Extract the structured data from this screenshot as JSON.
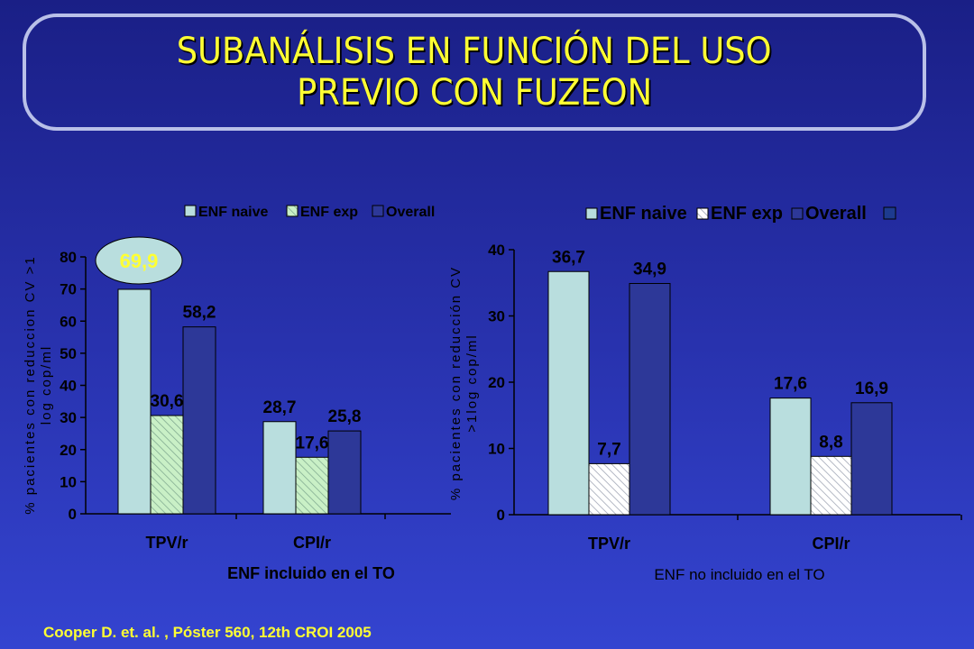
{
  "title": {
    "line1": "SUBANÁLISIS EN FUNCIÓN DEL USO",
    "line2": "PREVIO CON FUZEON"
  },
  "colors": {
    "naive": "#b9dede",
    "exp": "#c9f0c6",
    "exp_hatch": "#7fa88f",
    "overall": "#2d3898",
    "ellipse": "#b9dede",
    "ellipse_text": "#ffff33",
    "title": "#ffff33"
  },
  "chart_data": [
    {
      "type": "bar",
      "categories": [
        "TPV/r",
        "CPI/r"
      ],
      "series": [
        {
          "name": "ENF naive",
          "values": [
            69.9,
            28.7
          ]
        },
        {
          "name": "ENF exp",
          "values": [
            30.6,
            17.6
          ]
        },
        {
          "name": "Overall",
          "values": [
            58.2,
            25.8
          ]
        }
      ],
      "data_labels": [
        [
          "69,9",
          "28,7"
        ],
        [
          "30,6",
          "17,6"
        ],
        [
          "58,2",
          "25,8"
        ]
      ],
      "callout": "69,9",
      "yticks": [
        "0",
        "10",
        "20",
        "30",
        "40",
        "50",
        "60",
        "70",
        "80"
      ],
      "ylim": [
        0,
        80
      ],
      "ylabel_line1": "% pacientes con reduccion CV >1",
      "ylabel_line2": "log cop/ml",
      "xlabel": "ENF incluido en el TO",
      "legend_position": "top"
    },
    {
      "type": "bar",
      "categories": [
        "TPV/r",
        "CPI/r"
      ],
      "series": [
        {
          "name": "ENF naive",
          "values": [
            36.7,
            17.6
          ]
        },
        {
          "name": "ENF exp",
          "values": [
            7.7,
            8.8
          ]
        },
        {
          "name": "Overall",
          "values": [
            34.9,
            16.9
          ]
        }
      ],
      "data_labels": [
        [
          "36,7",
          "17,6"
        ],
        [
          "7,7",
          "8,8"
        ],
        [
          "34,9",
          "16,9"
        ]
      ],
      "yticks": [
        "0",
        "10",
        "20",
        "30",
        "40"
      ],
      "ylim": [
        0,
        40
      ],
      "ylabel_line1": "% pacientes con reducción CV",
      "ylabel_line2": ">1log cop/ml",
      "xlabel": "ENF  no incluido en el TO",
      "legend_position": "top"
    }
  ],
  "citation": "Cooper D. et. al. , Póster 560, 12th CROI 2005"
}
